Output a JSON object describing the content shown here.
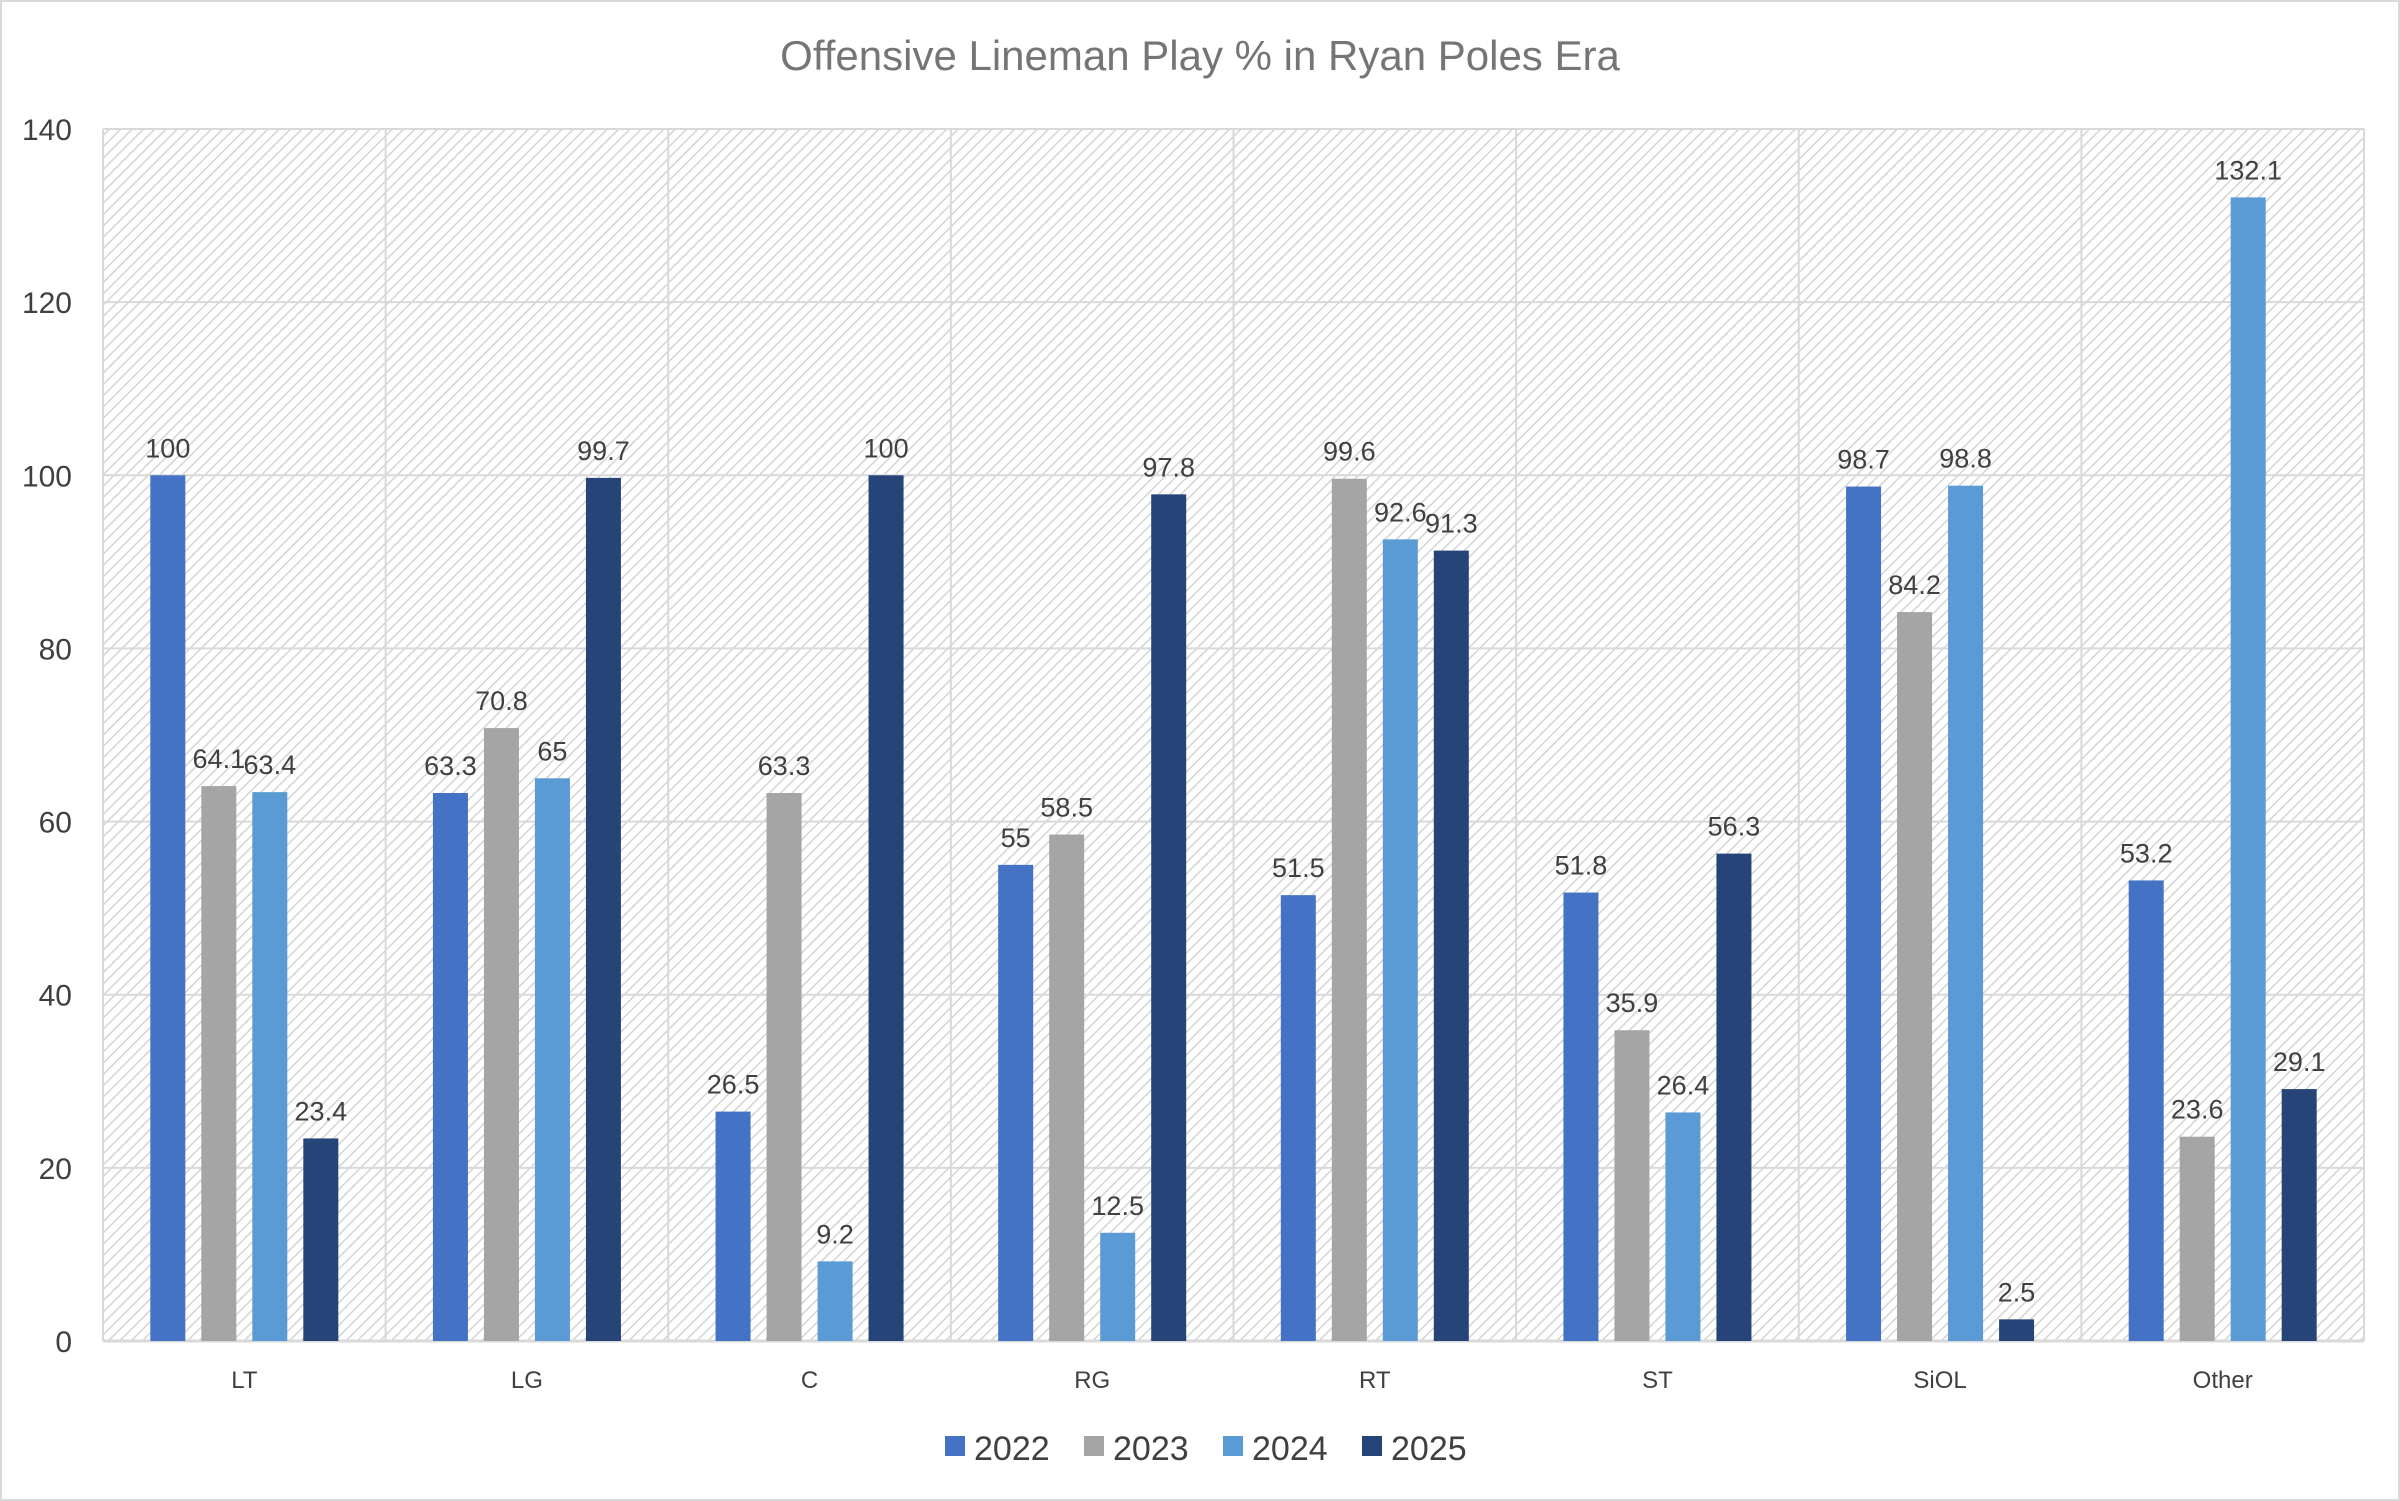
{
  "chart_data": {
    "type": "bar",
    "title": "Offensive Lineman Play % in Ryan Poles Era",
    "xlabel": "",
    "ylabel": "",
    "ylim": [
      0,
      140
    ],
    "yticks": [
      0,
      20,
      40,
      60,
      80,
      100,
      120,
      140
    ],
    "grid": true,
    "legend_position": "bottom",
    "categories": [
      "LT",
      "LG",
      "C",
      "RG",
      "RT",
      "ST",
      "SiOL",
      "Other"
    ],
    "series": [
      {
        "name": "2022",
        "color": "#4472c4",
        "values": [
          100,
          63.3,
          26.5,
          55,
          51.5,
          51.8,
          98.7,
          53.2
        ]
      },
      {
        "name": "2023",
        "color": "#a5a5a5",
        "values": [
          64.1,
          70.8,
          63.3,
          58.5,
          99.6,
          35.9,
          84.2,
          23.6
        ]
      },
      {
        "name": "2024",
        "color": "#5b9bd5",
        "values": [
          63.4,
          65,
          9.2,
          12.5,
          92.6,
          26.4,
          98.8,
          132.1
        ]
      },
      {
        "name": "2025",
        "color": "#264478",
        "values": [
          23.4,
          99.7,
          100,
          97.8,
          91.3,
          56.3,
          2.5,
          29.1
        ]
      }
    ]
  }
}
